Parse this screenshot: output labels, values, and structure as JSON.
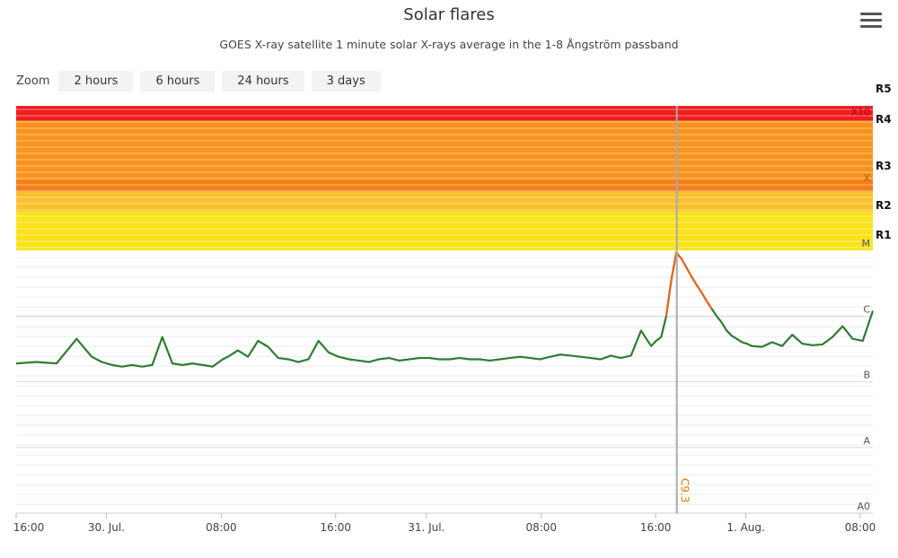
{
  "chart_data": {
    "type": "line",
    "title": "Solar flares",
    "subtitle": "GOES X-ray satellite 1 minute solar X-rays average in the 1-8 Ångström passband",
    "y_scale": "log",
    "y_classes": [
      "A0",
      "A",
      "B",
      "C",
      "M",
      "X",
      "X10"
    ],
    "radio_blackout_labels": [
      "R1",
      "R2",
      "R3",
      "R4",
      "R5"
    ],
    "x_tick_labels": [
      "16:00",
      "30. Jul.",
      "08:00",
      "16:00",
      "31. Jul.",
      "08:00",
      "16:00",
      "1. Aug.",
      "08:00"
    ],
    "crosshair_label": "C9.3",
    "series": [
      {
        "color": "#2e7d32",
        "flare_color": "#e8681f",
        "x": [
          0,
          4,
          8,
          12,
          15,
          17,
          19,
          21,
          23,
          25,
          27,
          29,
          31,
          33,
          35,
          37,
          39,
          41,
          42,
          44,
          46,
          48,
          50,
          52,
          54,
          56,
          58,
          60,
          62,
          64,
          66,
          68,
          70,
          72,
          74,
          76,
          78,
          80,
          82,
          84,
          86,
          88,
          90,
          92,
          94,
          96,
          98,
          100,
          102,
          104,
          106,
          108,
          110,
          112,
          114,
          116,
          118,
          120,
          122,
          124,
          126,
          127,
          128,
          129,
          130,
          131,
          132,
          133,
          134,
          135,
          136,
          137,
          138,
          139,
          140,
          141,
          142,
          143,
          144,
          145,
          146,
          148,
          150,
          152,
          154,
          156,
          158,
          160,
          162,
          164,
          166,
          168,
          170
        ],
        "values": [
          "B1.9",
          "B2.0",
          "B1.9",
          "B4.5",
          "B2.4",
          "B2.0",
          "B1.8",
          "B1.7",
          "B1.8",
          "B1.7",
          "B1.8",
          "B4.8",
          "B1.9",
          "B1.8",
          "B1.9",
          "B1.8",
          "B1.7",
          "B2.2",
          "B2.4",
          "B3.0",
          "B2.4",
          "B4.2",
          "B3.4",
          "B2.3",
          "B2.2",
          "B2.0",
          "B2.2",
          "B4.2",
          "B2.8",
          "B2.4",
          "B2.2",
          "B2.1",
          "B2.0",
          "B2.2",
          "B2.3",
          "B2.1",
          "B2.2",
          "B2.3",
          "B2.3",
          "B2.2",
          "B2.2",
          "B2.3",
          "B2.2",
          "B2.2",
          "B2.1",
          "B2.2",
          "B2.3",
          "B2.4",
          "B2.3",
          "B2.2",
          "B2.4",
          "B2.6",
          "B2.5",
          "B2.4",
          "B2.3",
          "B2.2",
          "B2.5",
          "B2.3",
          "B2.5",
          "B6.0",
          "B3.5",
          "B4.2",
          "B4.8",
          "C1.0",
          "C3.5",
          "C9.3",
          "C7.5",
          "C5.5",
          "C4.0",
          "C3.0",
          "C2.3",
          "C1.7",
          "C1.3",
          "C1.0",
          "B8.0",
          "B6.0",
          "B5.0",
          "B4.5",
          "B4.0",
          "B3.8",
          "B3.5",
          "B3.4",
          "B4.0",
          "B3.5",
          "B5.2",
          "B3.8",
          "B3.6",
          "B3.7",
          "B4.8",
          "B7.0",
          "B4.5",
          "B4.2",
          "C1.2"
        ]
      }
    ],
    "crosshair_at": "1. Aug.",
    "legend": "none",
    "grid": true
  },
  "zoom": {
    "label": "Zoom",
    "buttons": [
      "2 hours",
      "6 hours",
      "24 hours",
      "3 days"
    ]
  }
}
